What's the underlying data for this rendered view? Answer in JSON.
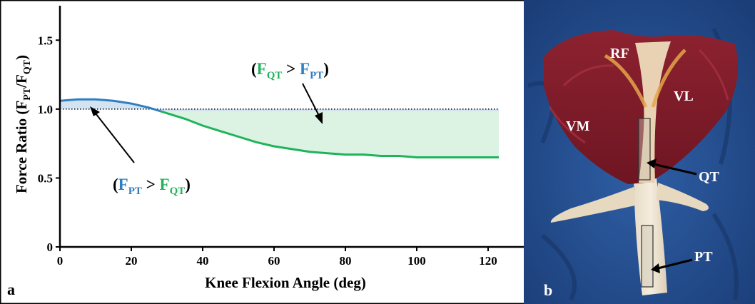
{
  "panel_a": {
    "label": "a",
    "annotation_upper": {
      "open": "(",
      "f1": "F",
      "sub1": "QT",
      "gt": " > ",
      "f2": "F",
      "sub2": "PT",
      "close": ")"
    },
    "annotation_lower": {
      "open": "(",
      "f1": "F",
      "sub1": "PT",
      "gt": " > ",
      "f2": "F",
      "sub2": "QT",
      "close": ")"
    }
  },
  "panel_b": {
    "label": "b",
    "labels": {
      "rf": "RF",
      "vl": "VL",
      "vm": "VM",
      "qt": "QT",
      "pt": "PT"
    }
  },
  "colors": {
    "pt_greater": "#2f7fc0",
    "qt_greater": "#1fb45a",
    "pt_fill": "#d3e3f2",
    "qt_fill": "#dcf3e4",
    "reference_line": "#000000"
  },
  "chart_data": {
    "type": "area",
    "xlabel": "Knee Flexion Angle (deg)",
    "ylabel": {
      "main": "Force Ratio (F",
      "sub1": "PT",
      "mid": "/F",
      "sub2": "QT",
      "end": ")"
    },
    "xlim": [
      0,
      130
    ],
    "ylim": [
      0,
      1.75
    ],
    "xticks": [
      0,
      20,
      40,
      60,
      80,
      100,
      120
    ],
    "yticks": [
      0,
      0.5,
      1.0,
      1.5
    ],
    "ytick_labels": [
      "0",
      "0.5",
      "1.0",
      "1.5"
    ],
    "reference_y": 1.0,
    "reference_style": "dotted",
    "grid": false,
    "legend": "none",
    "series": [
      {
        "x": [
          0,
          5,
          10,
          15,
          20,
          25,
          30,
          35,
          40,
          45,
          50,
          55,
          60,
          65,
          70,
          75,
          80,
          85,
          90,
          95,
          100,
          105,
          110,
          115,
          120,
          123
        ],
        "y": [
          1.06,
          1.07,
          1.07,
          1.06,
          1.04,
          1.01,
          0.97,
          0.93,
          0.88,
          0.84,
          0.8,
          0.76,
          0.73,
          0.71,
          0.69,
          0.68,
          0.67,
          0.67,
          0.66,
          0.66,
          0.65,
          0.65,
          0.65,
          0.65,
          0.65,
          0.65
        ]
      }
    ]
  }
}
